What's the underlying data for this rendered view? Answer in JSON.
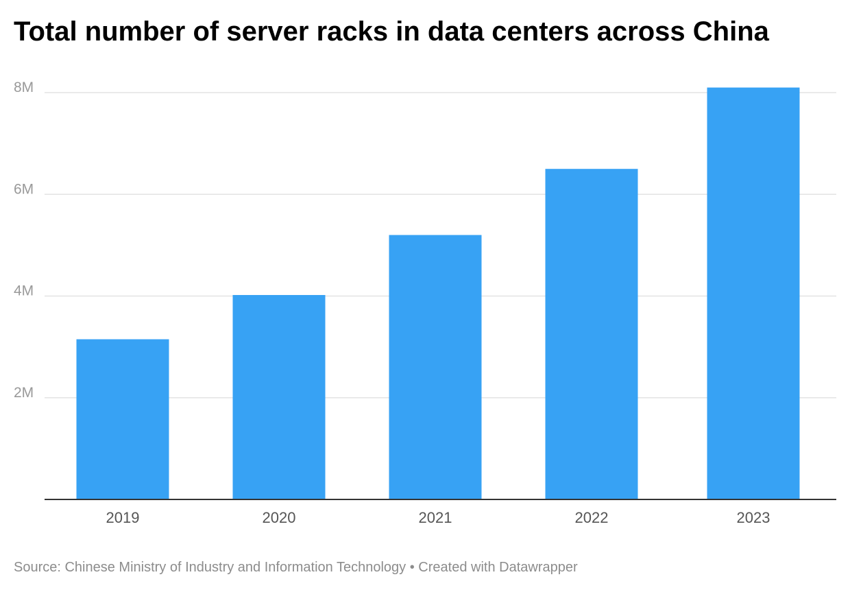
{
  "title": "Total number of server racks in data centers across China",
  "footer": {
    "source": "Source: Chinese Ministry of Industry and Information Technology",
    "separator": "•",
    "credit": "Created with Datawrapper"
  },
  "colors": {
    "bar": "#37a2f4",
    "grid": "#e3e3e3",
    "axis": "#333333",
    "tick_text": "#999999",
    "category_text": "#555555"
  },
  "chart_data": {
    "type": "bar",
    "title": "Total number of server racks in data centers across China",
    "xlabel": "",
    "ylabel": "",
    "categories": [
      "2019",
      "2020",
      "2021",
      "2022",
      "2023"
    ],
    "values": [
      3150000,
      4020000,
      5200000,
      6500000,
      8100000
    ],
    "ylim": [
      0,
      8000000
    ],
    "yticks": [
      {
        "value": 2000000,
        "label": "2M"
      },
      {
        "value": 4000000,
        "label": "4M"
      },
      {
        "value": 6000000,
        "label": "6M"
      },
      {
        "value": 8000000,
        "label": "8M"
      }
    ],
    "grid": true,
    "legend": "none"
  }
}
